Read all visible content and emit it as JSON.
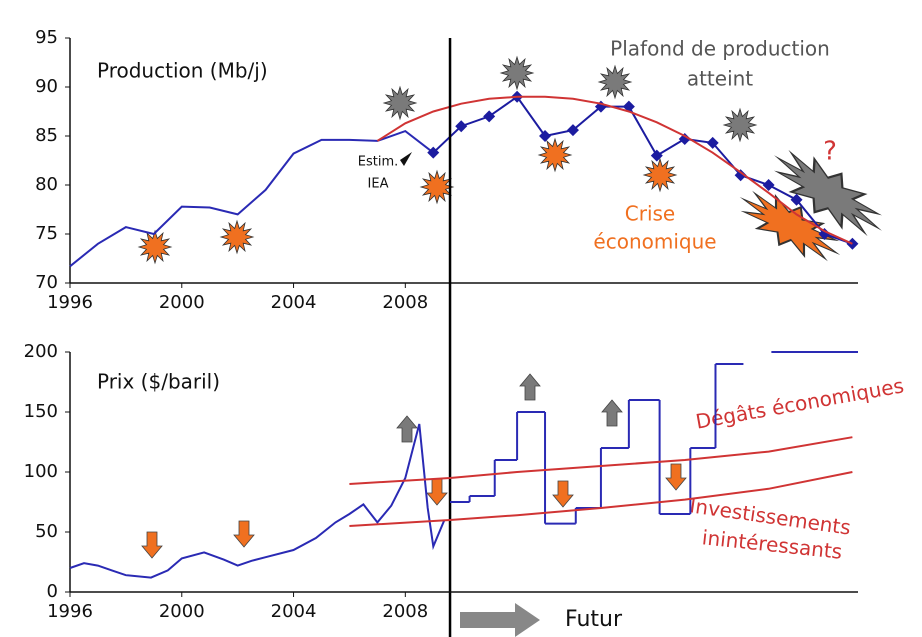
{
  "chart_data": [
    {
      "type": "line",
      "annotations": [
        "Production (Mb/j)",
        "Plafond de production",
        "atteint",
        "Estim.",
        "IEA",
        "Crise",
        "économique",
        "?"
      ],
      "xlim": [
        1996,
        2024.2
      ],
      "xticks": [
        1996,
        2000,
        2004,
        2008
      ],
      "ylim": [
        70,
        95
      ],
      "yticks": [
        70,
        75,
        80,
        85,
        90,
        95
      ],
      "vline": 2009.6,
      "series": [
        {
          "color": "#2a2ab4",
          "x": [
            1996,
            1997,
            1998,
            1999,
            2000,
            2001,
            2002,
            2003,
            2004,
            2005,
            2006,
            2007,
            2008,
            2009
          ],
          "values": [
            71.7,
            74,
            75.7,
            75,
            77.8,
            77.7,
            77,
            79.5,
            83.2,
            84.6,
            84.6,
            84.5,
            85.5,
            83.3
          ]
        },
        {
          "color": "#1c1ca0",
          "marker": "diamond",
          "x": [
            2009,
            2010,
            2011,
            2012,
            2013,
            2014,
            2015,
            2016,
            2017,
            2018,
            2019,
            2020,
            2021,
            2022,
            2023,
            2024
          ],
          "values": [
            83.3,
            86,
            87,
            89,
            85,
            85.6,
            88,
            88,
            83,
            84.7,
            84.3,
            81,
            80,
            78.5,
            75,
            74
          ]
        },
        {
          "color": "#d03434",
          "x": [
            2007,
            2008,
            2009,
            2010,
            2011,
            2012,
            2013,
            2014,
            2015,
            2016,
            2017,
            2018,
            2019,
            2020,
            2021,
            2022,
            2023,
            2024
          ],
          "values": [
            84.5,
            86.3,
            87.5,
            88.3,
            88.8,
            89,
            89,
            88.8,
            88.3,
            87.5,
            86.4,
            85,
            83.3,
            81.3,
            79.2,
            77,
            75.3,
            74
          ]
        }
      ]
    },
    {
      "type": "line",
      "annotations": [
        "Prix ($/baril)",
        "Dégâts économiques",
        "Investissements",
        "inintéressants",
        "Futur"
      ],
      "xlim": [
        1996,
        2024.2
      ],
      "xticks": [
        1996,
        2000,
        2004,
        2008
      ],
      "ylim": [
        0,
        200
      ],
      "yticks": [
        0,
        50,
        100,
        150,
        200
      ],
      "series": [
        {
          "color": "#2a2ab4",
          "x": [
            1996,
            1996.5,
            1997,
            1997.5,
            1998,
            1998.9,
            1999.5,
            2000,
            2000.8,
            2001.5,
            2002,
            2002.5,
            2003,
            2004,
            2004.8,
            2005.5,
            2006,
            2006.5,
            2007,
            2007.5,
            2008,
            2008.5,
            2008.8,
            2009,
            2009.4
          ],
          "values": [
            20,
            24,
            22,
            18,
            14,
            12,
            18,
            28,
            33,
            27,
            22,
            26,
            29,
            35,
            45,
            58,
            65,
            73,
            58,
            72,
            95,
            140,
            70,
            38,
            60
          ]
        },
        {
          "color": "#2a2ab4",
          "step": true,
          "x": [
            2009.6,
            2010.3,
            2011.2,
            2012,
            2013,
            2014.1,
            2015,
            2016,
            2017.1,
            2018.2,
            2019.1,
            2020.1,
            2021.1
          ],
          "values": [
            75,
            80,
            110,
            150,
            57,
            70,
            120,
            160,
            65,
            120,
            190,
            null,
            200
          ]
        },
        {
          "color": "#d03434",
          "x": [
            2006,
            2009.6,
            2012,
            2015,
            2018,
            2021,
            2024
          ],
          "values": [
            90,
            95,
            100,
            105,
            110,
            117,
            129
          ]
        },
        {
          "color": "#d03434",
          "x": [
            2006,
            2009.6,
            2012,
            2015,
            2018,
            2021,
            2024
          ],
          "values": [
            55,
            60,
            64,
            70,
            77,
            86,
            100
          ]
        }
      ]
    }
  ]
}
